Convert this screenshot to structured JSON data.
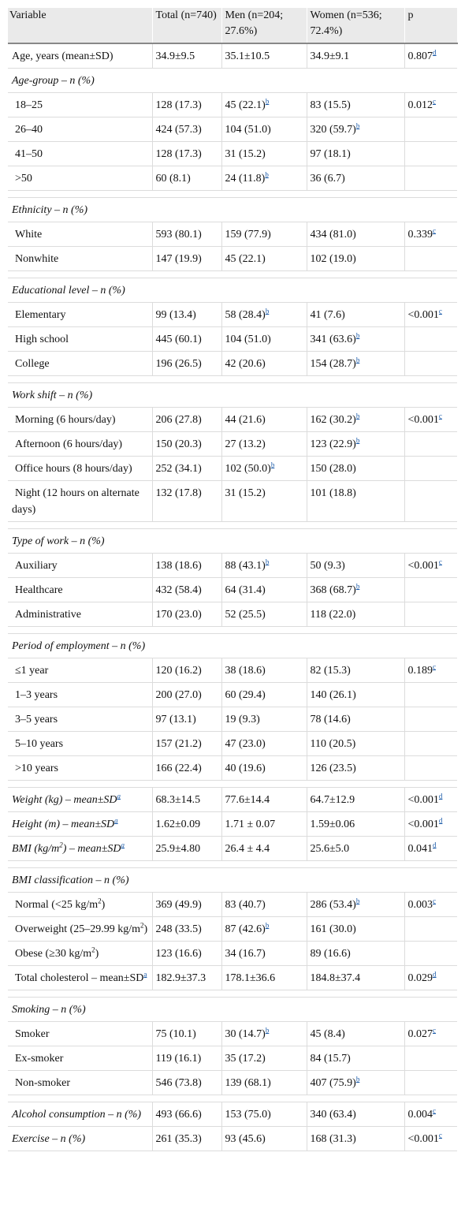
{
  "header": {
    "variable": "Variable",
    "total": "Total (n=740)",
    "men": "Men (n=204; 27.6%)",
    "women": "Women (n=536; 72.4%)",
    "p": "p"
  },
  "rows": [
    {
      "type": "data",
      "label": "Age, years (mean±SD)",
      "total": "34.9±9.5",
      "men": "35.1±10.5",
      "women": "34.9±9.1",
      "p": "0.807",
      "p_sup": "d"
    },
    {
      "type": "section",
      "label": "Age-group – n (%)"
    },
    {
      "type": "data",
      "indent": true,
      "label": "18–25",
      "total": "128 (17.3)",
      "men": "45 (22.1)",
      "men_sup": "b",
      "women": "83 (15.5)",
      "p": "0.012",
      "p_sup": "c"
    },
    {
      "type": "data",
      "indent": true,
      "label": "26–40",
      "total": "424 (57.3)",
      "men": "104 (51.0)",
      "women": "320 (59.7)",
      "women_sup": "b"
    },
    {
      "type": "data",
      "indent": true,
      "label": "41–50",
      "total": "128 (17.3)",
      "men": "31 (15.2)",
      "women": "97 (18.1)"
    },
    {
      "type": "data",
      "indent": true,
      "label": ">50",
      "total": "60 (8.1)",
      "men": "24 (11.8)",
      "men_sup": "b",
      "women": "36 (6.7)"
    },
    {
      "type": "spacer"
    },
    {
      "type": "section",
      "label": "Ethnicity – n (%)"
    },
    {
      "type": "data",
      "indent": true,
      "label": "White",
      "total": "593 (80.1)",
      "men": "159 (77.9)",
      "women": "434 (81.0)",
      "p": "0.339",
      "p_sup": "c"
    },
    {
      "type": "data",
      "indent": true,
      "label": "Nonwhite",
      "total": "147 (19.9)",
      "men": "45 (22.1)",
      "women": "102 (19.0)"
    },
    {
      "type": "spacer"
    },
    {
      "type": "section",
      "label": "Educational level – n (%)"
    },
    {
      "type": "data",
      "indent": true,
      "label": "Elementary",
      "total": "99 (13.4)",
      "men": "58 (28.4)",
      "men_sup": "b",
      "women": "41 (7.6)",
      "p": "<0.001",
      "p_sup": "c"
    },
    {
      "type": "data",
      "indent": true,
      "label": "High school",
      "total": "445 (60.1)",
      "men": "104 (51.0)",
      "women": "341 (63.6)",
      "women_sup": "b"
    },
    {
      "type": "data",
      "indent": true,
      "label": "College",
      "total": "196 (26.5)",
      "men": "42 (20.6)",
      "women": "154 (28.7)",
      "women_sup": "b"
    },
    {
      "type": "spacer"
    },
    {
      "type": "section",
      "label": "Work shift – n (%)"
    },
    {
      "type": "data",
      "indent": true,
      "label": "Morning (6 hours/day)",
      "total": "206 (27.8)",
      "men": "44 (21.6)",
      "women": "162 (30.2)",
      "women_sup": "b",
      "p": "<0.001",
      "p_sup": "c"
    },
    {
      "type": "data",
      "indent": true,
      "label": "Afternoon (6 hours/day)",
      "total": "150 (20.3)",
      "men": "27 (13.2)",
      "women": "123 (22.9)",
      "women_sup": "b"
    },
    {
      "type": "data",
      "indent": true,
      "label": "Office hours (8 hours/day)",
      "total": "252 (34.1)",
      "men": "102 (50.0)",
      "men_sup": "b",
      "women": "150 (28.0)"
    },
    {
      "type": "data",
      "indent": true,
      "label": "Night (12 hours on alternate days)",
      "total": "132 (17.8)",
      "men": "31 (15.2)",
      "women": "101 (18.8)"
    },
    {
      "type": "spacer"
    },
    {
      "type": "section",
      "label": "Type of work – n (%)"
    },
    {
      "type": "data",
      "indent": true,
      "label": "Auxiliary",
      "total": "138 (18.6)",
      "men": "88 (43.1)",
      "men_sup": "b",
      "women": "50 (9.3)",
      "p": "<0.001",
      "p_sup": "c"
    },
    {
      "type": "data",
      "indent": true,
      "label": "Healthcare",
      "total": "432 (58.4)",
      "men": "64 (31.4)",
      "women": "368 (68.7)",
      "women_sup": "b"
    },
    {
      "type": "data",
      "indent": true,
      "label": "Administrative",
      "total": "170 (23.0)",
      "men": "52 (25.5)",
      "women": "118 (22.0)"
    },
    {
      "type": "spacer"
    },
    {
      "type": "section",
      "label": "Period of employment – n (%)"
    },
    {
      "type": "data",
      "indent": true,
      "label": "≤1 year",
      "total": "120 (16.2)",
      "men": "38 (18.6)",
      "women": "82 (15.3)",
      "p": "0.189",
      "p_sup": "c"
    },
    {
      "type": "data",
      "indent": true,
      "label": "1–3 years",
      "total": "200 (27.0)",
      "men": "60 (29.4)",
      "women": "140 (26.1)"
    },
    {
      "type": "data",
      "indent": true,
      "label": "3–5 years",
      "total": "97 (13.1)",
      "men": "19 (9.3)",
      "women": "78 (14.6)"
    },
    {
      "type": "data",
      "indent": true,
      "label": "5–10 years",
      "total": "157 (21.2)",
      "men": "47 (23.0)",
      "women": "110 (20.5)"
    },
    {
      "type": "data",
      "indent": true,
      "label": ">10 years",
      "total": "166 (22.4)",
      "men": "40 (19.6)",
      "women": "126 (23.5)"
    },
    {
      "type": "spacer"
    },
    {
      "type": "data",
      "italic": true,
      "label": "Weight (kg) – mean±SD",
      "label_sup": "a",
      "total": "68.3±14.5",
      "men": "77.6±14.4",
      "women": "64.7±12.9",
      "p": "<0.001",
      "p_sup": "d"
    },
    {
      "type": "data",
      "italic": true,
      "label": "Height (m) – mean±SD",
      "label_sup": "a",
      "total": "1.62±0.09",
      "men": "1.71 ± 0.07",
      "women": "1.59±0.06",
      "p": "<0.001",
      "p_sup": "d"
    },
    {
      "type": "data",
      "italic": true,
      "label": "BMI (kg/m",
      "label_sup2": "2",
      "label_after": ") – mean±SD",
      "label_sup": "a",
      "total": "25.9±4.80",
      "men": "26.4 ± 4.4",
      "women": "25.6±5.0",
      "p": "0.041",
      "p_sup": "d"
    },
    {
      "type": "spacer"
    },
    {
      "type": "section",
      "label": "BMI classification – n (%)"
    },
    {
      "type": "data",
      "indent": true,
      "label": "Normal (<25 kg/m",
      "label_sup2": "2",
      "label_after": ")",
      "total": "369 (49.9)",
      "men": "83 (40.7)",
      "women": "286 (53.4)",
      "women_sup": "b",
      "p": "0.003",
      "p_sup": "c"
    },
    {
      "type": "data",
      "indent": true,
      "label": "Overweight (25–29.99 kg/m",
      "label_sup2": "2",
      "label_after": ")",
      "total": "248 (33.5)",
      "men": "87 (42.6)",
      "men_sup": "b",
      "women": "161 (30.0)"
    },
    {
      "type": "data",
      "indent": true,
      "label": "Obese (≥30 kg/m",
      "label_sup2": "2",
      "label_after": ")",
      "total": "123 (16.6)",
      "men": "34 (16.7)",
      "women": "89 (16.6)"
    },
    {
      "type": "data",
      "indent": true,
      "label": "Total cholesterol – mean±SD",
      "label_sup": "a",
      "total": "182.9±37.3",
      "men": "178.1±36.6",
      "women": "184.8±37.4",
      "p": "0.029",
      "p_sup": "d"
    },
    {
      "type": "spacer"
    },
    {
      "type": "section",
      "label": "Smoking – n (%)"
    },
    {
      "type": "data",
      "indent": true,
      "label": "Smoker",
      "total": "75 (10.1)",
      "men": "30 (14.7)",
      "men_sup": "b",
      "women": "45 (8.4)",
      "p": "0.027",
      "p_sup": "c"
    },
    {
      "type": "data",
      "indent": true,
      "label": "Ex-smoker",
      "total": "119 (16.1)",
      "men": "35 (17.2)",
      "women": "84 (15.7)"
    },
    {
      "type": "data",
      "indent": true,
      "label": "Non-smoker",
      "total": "546 (73.8)",
      "men": "139 (68.1)",
      "women": "407 (75.9)",
      "women_sup": "b"
    },
    {
      "type": "spacer"
    },
    {
      "type": "data",
      "italic": true,
      "label": "Alcohol consumption – n (%)",
      "total": "493 (66.6)",
      "men": "153 (75.0)",
      "women": "340 (63.4)",
      "p": "0.004",
      "p_sup": "c"
    },
    {
      "type": "data",
      "italic": true,
      "label": "Exercise – n (%)",
      "total": "261 (35.3)",
      "men": "93 (45.6)",
      "women": "168 (31.3)",
      "p": "<0.001",
      "p_sup": "c"
    }
  ]
}
